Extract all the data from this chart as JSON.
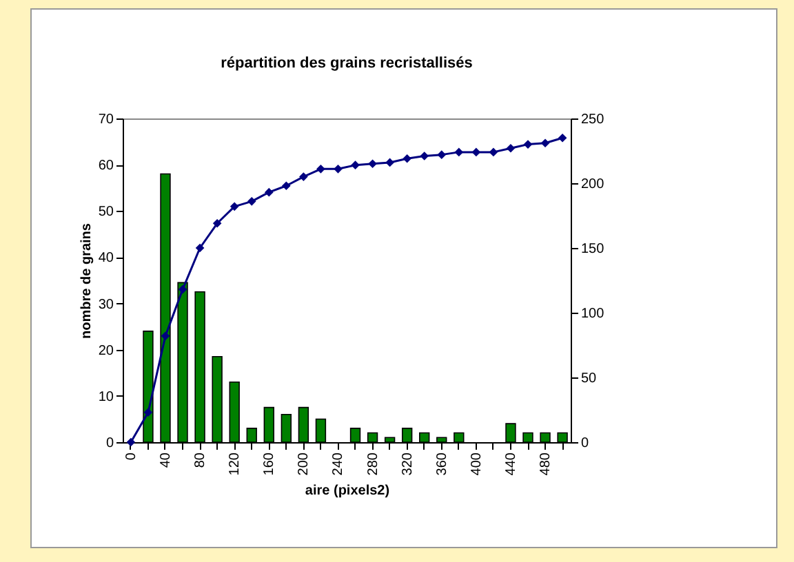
{
  "chart_data": {
    "type": "bar",
    "title": "répartition des grains recristallisés",
    "xlabel": "aire (pixels2)",
    "ylabel": "nombre de grains",
    "categories": [
      "0",
      null,
      "40",
      null,
      "80",
      null,
      "120",
      null,
      "160",
      null,
      "200",
      null,
      "240",
      null,
      "280",
      null,
      "320",
      null,
      "360",
      null,
      "400",
      null,
      "440",
      null,
      "480",
      null
    ],
    "series": [
      {
        "color": "#008000",
        "values": [
          0,
          24,
          58,
          34.5,
          32.5,
          18.5,
          13,
          3,
          7.5,
          6,
          7.5,
          5,
          0,
          3,
          2,
          1,
          3,
          2,
          1,
          2,
          0,
          0,
          4,
          2,
          2,
          2
        ]
      },
      {
        "type": "line",
        "axis": "y2",
        "color": "#000080",
        "marker": "diamond",
        "line_style": "solid",
        "values": [
          0,
          23,
          82,
          118,
          150,
          169,
          182,
          186,
          193,
          198,
          205,
          211,
          211,
          214,
          215,
          216,
          219,
          221,
          222,
          224,
          224,
          224,
          227,
          230,
          231,
          235
        ]
      }
    ],
    "ylim": [
      0,
      70
    ],
    "yticks": [
      0,
      10,
      20,
      30,
      40,
      50,
      60,
      70
    ],
    "y2lim": [
      0,
      250
    ],
    "y2ticks": [
      0,
      50,
      100,
      150,
      200,
      250
    ],
    "grid": false
  }
}
